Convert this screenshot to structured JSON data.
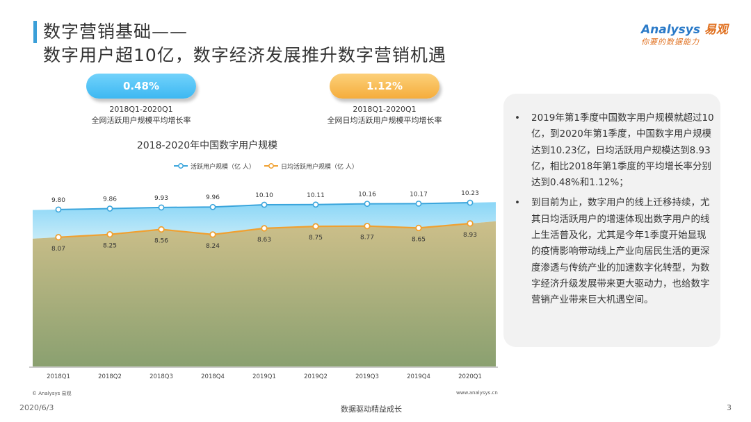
{
  "header": {
    "title_line1": "数字营销基础——",
    "title_line2": "数字用户超10亿，数字经济发展推升数字营销机遇"
  },
  "logo": {
    "brand_prefix": "Analysys",
    "brand_cn": "易观",
    "slogan": "你要的数据能力"
  },
  "metrics": [
    {
      "value": "0.48%",
      "period": "2018Q1-2020Q1",
      "label": "全网活跃用户规模平均增长率",
      "color": "#4dc0f5"
    },
    {
      "value": "1.12%",
      "period": "2018Q1-2020Q1",
      "label": "全网日均活跃用户规模平均增长率",
      "color": "#f7b44a"
    }
  ],
  "chart_data": {
    "type": "line",
    "title": "2018-2020年中国数字用户规模",
    "categories": [
      "2018Q1",
      "2018Q2",
      "2018Q3",
      "2018Q4",
      "2019Q1",
      "2019Q2",
      "2019Q3",
      "2019Q4",
      "2020Q1"
    ],
    "series": [
      {
        "name": "活跃用户规模（亿 人）",
        "color": "#3aa5dc",
        "values": [
          9.8,
          9.86,
          9.93,
          9.96,
          10.1,
          10.11,
          10.16,
          10.17,
          10.23
        ]
      },
      {
        "name": "日均活跃用户规模（亿 人）",
        "color": "#f0a030",
        "values": [
          8.07,
          8.25,
          8.56,
          8.24,
          8.63,
          8.75,
          8.77,
          8.65,
          8.93
        ]
      }
    ],
    "labels": [
      [
        "9.80",
        "9.86",
        "9.93",
        "9.96",
        "10.10",
        "10.11",
        "10.16",
        "10.17",
        "10.23"
      ],
      [
        "8.07",
        "8.25",
        "8.56",
        "8.24",
        "8.63",
        "8.75",
        "8.77",
        "8.65",
        "8.93"
      ]
    ],
    "ylim": [
      0,
      11.4
    ],
    "legend_position": "top-center",
    "grid": false
  },
  "side_notes": [
    "2019年第1季度中国数字用户规模就超过10亿，到2020年第1季度，中国数字用户规模达到10.23亿，日均活跃用户规模达到8.93亿，相比2018年第1季度的平均增长率分别达到0.48%和1.12%；",
    "到目前为止，数字用户的线上迁移持续，尤其日均活跃用户的增速体现出数字用户的线上生活普及化，尤其是今年1季度开始显现的疫情影响带动线上产业向居民生活的更深度渗透与传统产业的加速数字化转型，为数字经济升级发展带来更大驱动力，也给数字营销产业带来巨大机遇空间。"
  ],
  "bullet_symbol": "•",
  "footer": {
    "copyright": "© Analysys 易观",
    "website": "www.analysys.cn",
    "date": "2020/6/3",
    "slogan": "数据驱动精益成长",
    "page": "3"
  }
}
